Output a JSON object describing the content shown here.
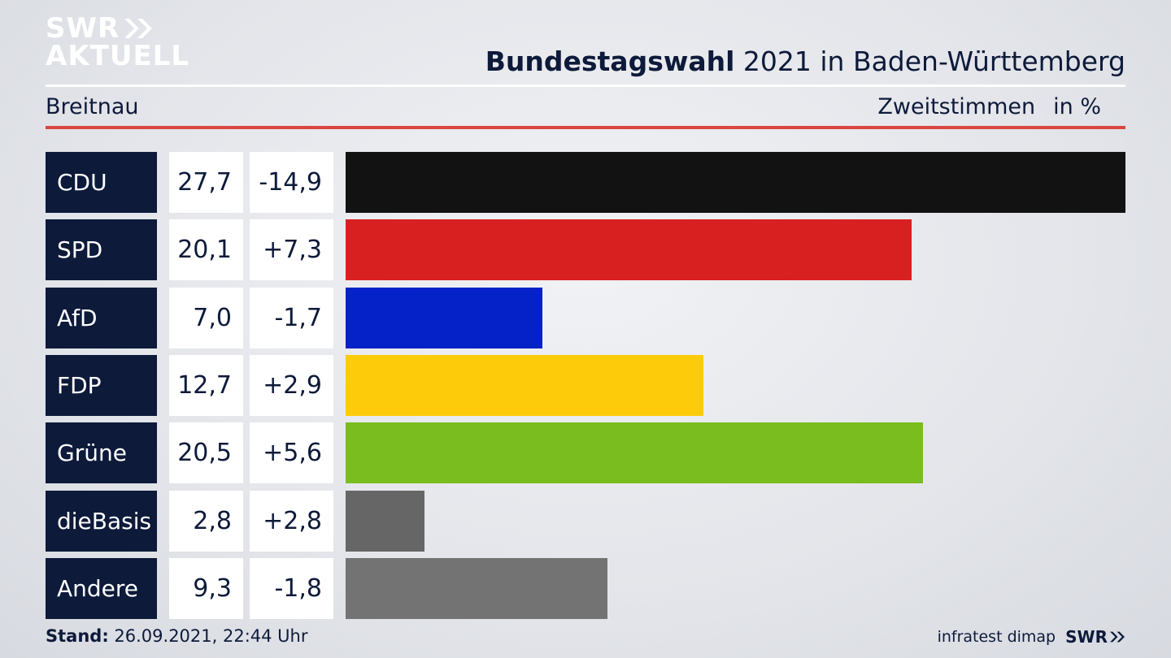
{
  "header": {
    "logo_line1": "SWR",
    "logo_line2": "AKTUELL",
    "title_bold": "Bundestagswahl",
    "title_rest": " 2021 in Baden-Württemberg",
    "location": "Breitnau",
    "measure": "Zweitstimmen",
    "unit": "in %"
  },
  "chart_data": {
    "type": "bar",
    "orientation": "horizontal",
    "categories": [
      "CDU",
      "SPD",
      "AfD",
      "FDP",
      "Grüne",
      "dieBasis",
      "Andere"
    ],
    "values": [
      27.7,
      20.1,
      7.0,
      12.7,
      20.5,
      2.8,
      9.3
    ],
    "value_labels": [
      "27,7",
      "20,1",
      "7,0",
      "12,7",
      "20,5",
      "2,8",
      "9,3"
    ],
    "change_labels": [
      "-14,9",
      "+7,3",
      "-1,7",
      "+2,9",
      "+5,6",
      "+2,8",
      "-1,8"
    ],
    "changes": [
      -14.9,
      7.3,
      -1.7,
      2.9,
      5.6,
      2.8,
      -1.8
    ],
    "colors": [
      "#121212",
      "#d92020",
      "#0522c8",
      "#fecb0a",
      "#79bd1e",
      "#666666",
      "#737373"
    ],
    "xlim": [
      0,
      27.7
    ]
  },
  "footer": {
    "stand_label": "Stand:",
    "stand_value": " 26.09.2021, 22:44 Uhr",
    "source": "infratest dimap",
    "brand": "SWR"
  }
}
